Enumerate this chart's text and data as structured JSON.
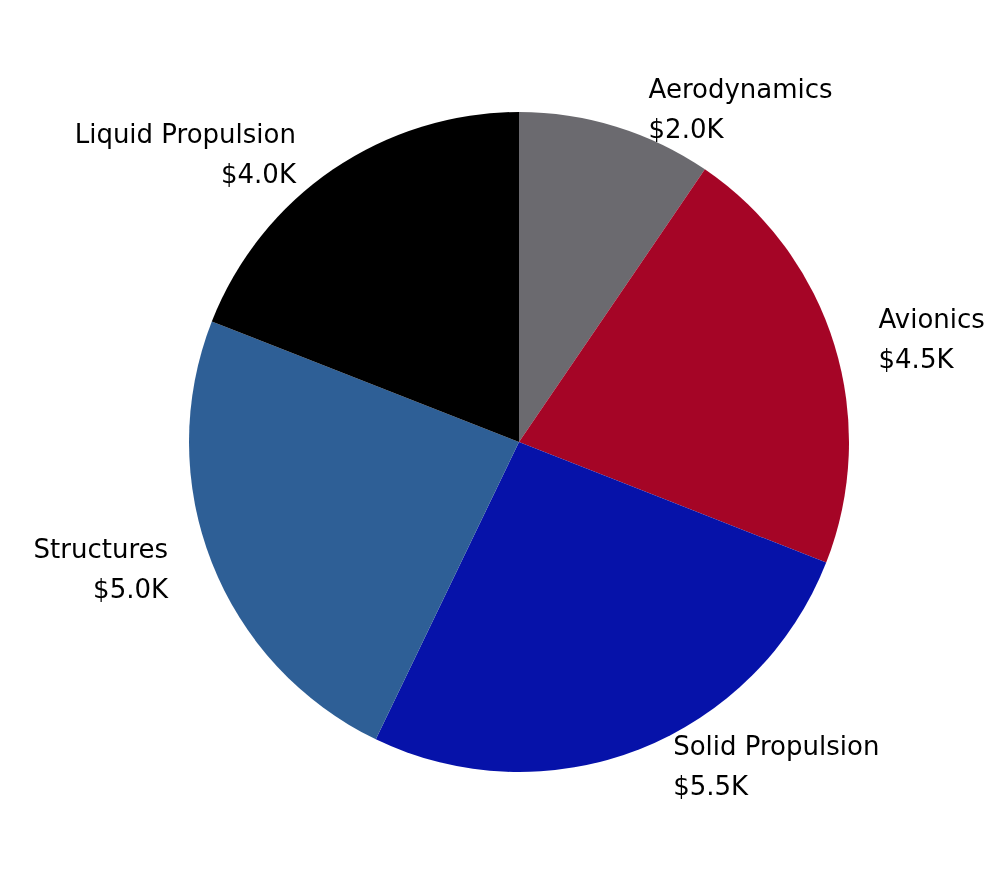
{
  "chart_data": {
    "type": "pie",
    "categories": [
      "Aerodynamics",
      "Avionics",
      "Solid Propulsion",
      "Structures",
      "Liquid Propulsion"
    ],
    "values": [
      2.0,
      4.5,
      5.5,
      5.0,
      4.0
    ],
    "value_labels": [
      "$2.0K",
      "$4.5K",
      "$5.5K",
      "$5.0K",
      "$4.0K"
    ],
    "colors": [
      "#6b6a6f",
      "#a50526",
      "#0612a9",
      "#2e5f96",
      "#000000"
    ],
    "legend": false
  }
}
